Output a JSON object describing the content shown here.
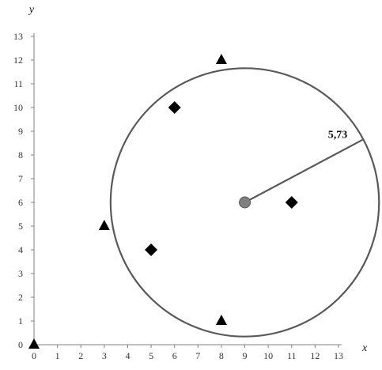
{
  "chart_data": {
    "type": "scatter",
    "title": "",
    "xlabel": "x",
    "ylabel": "y",
    "xlim": [
      0,
      13
    ],
    "ylim": [
      0,
      13
    ],
    "xticks": [
      0,
      1,
      2,
      3,
      4,
      5,
      6,
      7,
      8,
      9,
      10,
      11,
      12,
      13
    ],
    "yticks": [
      0,
      1,
      2,
      3,
      4,
      5,
      6,
      7,
      8,
      9,
      10,
      11,
      12,
      13
    ],
    "grid": false,
    "series": [
      {
        "marker": "triangle",
        "color": "#000000",
        "points": [
          [
            0,
            0
          ],
          [
            3,
            5
          ],
          [
            8,
            12
          ],
          [
            8,
            1
          ]
        ]
      },
      {
        "marker": "diamond",
        "color": "#000000",
        "points": [
          [
            6,
            10
          ],
          [
            5,
            4
          ],
          [
            11,
            6
          ]
        ]
      },
      {
        "marker": "circle",
        "color": "#808080",
        "points": [
          [
            9,
            6
          ]
        ]
      }
    ],
    "circle": {
      "center": [
        9,
        6
      ],
      "radius": 5.73,
      "color": "#595959"
    },
    "radius_label": "5,73"
  }
}
